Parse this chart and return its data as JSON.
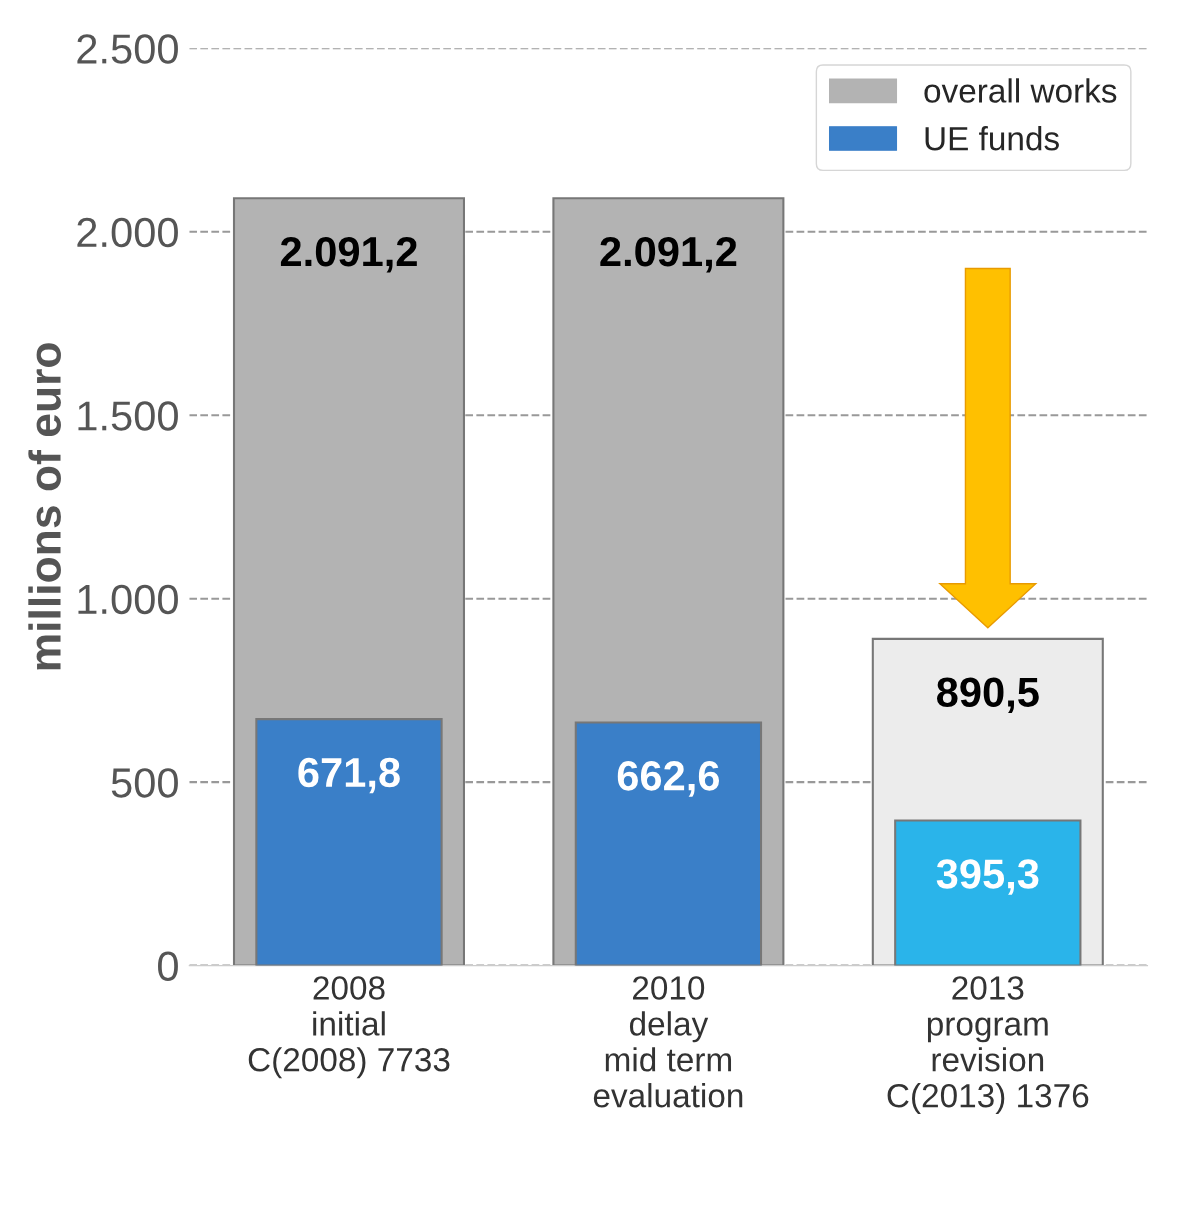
{
  "chart_data": {
    "type": "bar",
    "ylabel": "millions of euro",
    "categories": [
      "2008\ninitial\nC(2008) 7733",
      "2010\ndelay\nmid term\nevaluation",
      "2013\nprogram\nrevision\nC(2013) 1376"
    ],
    "series": [
      {
        "name": "overall works",
        "color": "#b3b3b3",
        "colors": [
          "#b3b3b3",
          "#b3b3b3",
          "#ececec"
        ],
        "values": [
          2091.2,
          2091.2,
          890.5
        ],
        "value_labels": [
          "2.091,2",
          "2.091,2",
          "890,5"
        ]
      },
      {
        "name": "UE funds",
        "color": "#3a7fc8",
        "colors": [
          "#3a7fc8",
          "#3a7fc8",
          "#2ab4ea"
        ],
        "values": [
          671.8,
          662.6,
          395.3
        ],
        "value_labels": [
          "671,8",
          "662,6",
          "395,3"
        ]
      }
    ],
    "ylim": [
      0,
      2500
    ],
    "yticks": [
      0,
      500,
      {
        "value": 1000,
        "label": "1.000"
      },
      {
        "value": 1500,
        "label": "1.500"
      },
      {
        "value": 2000,
        "label": "2.000"
      },
      {
        "value": 2500,
        "label": "2.500"
      }
    ],
    "grid": "y",
    "line_style": "dashed",
    "legend": "top right"
  }
}
